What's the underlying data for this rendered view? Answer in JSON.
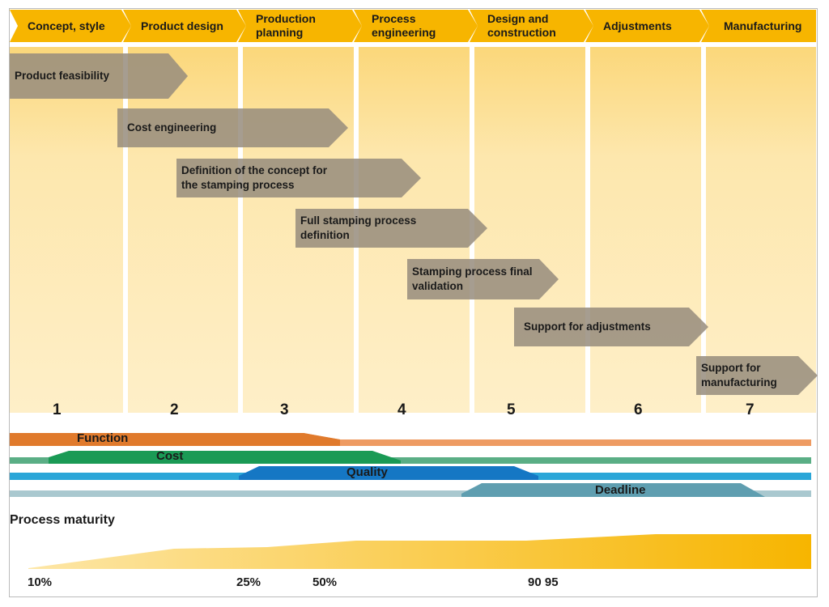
{
  "phases": [
    "Concept, style",
    "Product design",
    "Production planning",
    "Process engineering",
    "Design and construction",
    "Adjustments",
    "Manufacturing"
  ],
  "tasks": [
    "Product feasibility",
    "Cost engineering",
    "Definition of the concept for the stamping process",
    "Full stamping process definition",
    "Stamping process final validation",
    "Support for adjustments",
    "Support for manufacturing"
  ],
  "step_numbers": [
    "1",
    "2",
    "3",
    "4",
    "5",
    "6",
    "7"
  ],
  "bands": {
    "function": "Function",
    "cost": "Cost",
    "quality": "Quality",
    "deadline": "Deadline"
  },
  "maturity": {
    "title": "Process maturity",
    "labels": [
      "10%",
      "25%",
      "50%",
      "90 95"
    ]
  },
  "colors": {
    "phase": "#f7b500",
    "task": "#968c7d",
    "function": "#e07a2c",
    "cost": "#1a9a55",
    "quality": "#1a8fd0",
    "deadline": "#5f9eb0",
    "maturity": "#f7b500"
  }
}
